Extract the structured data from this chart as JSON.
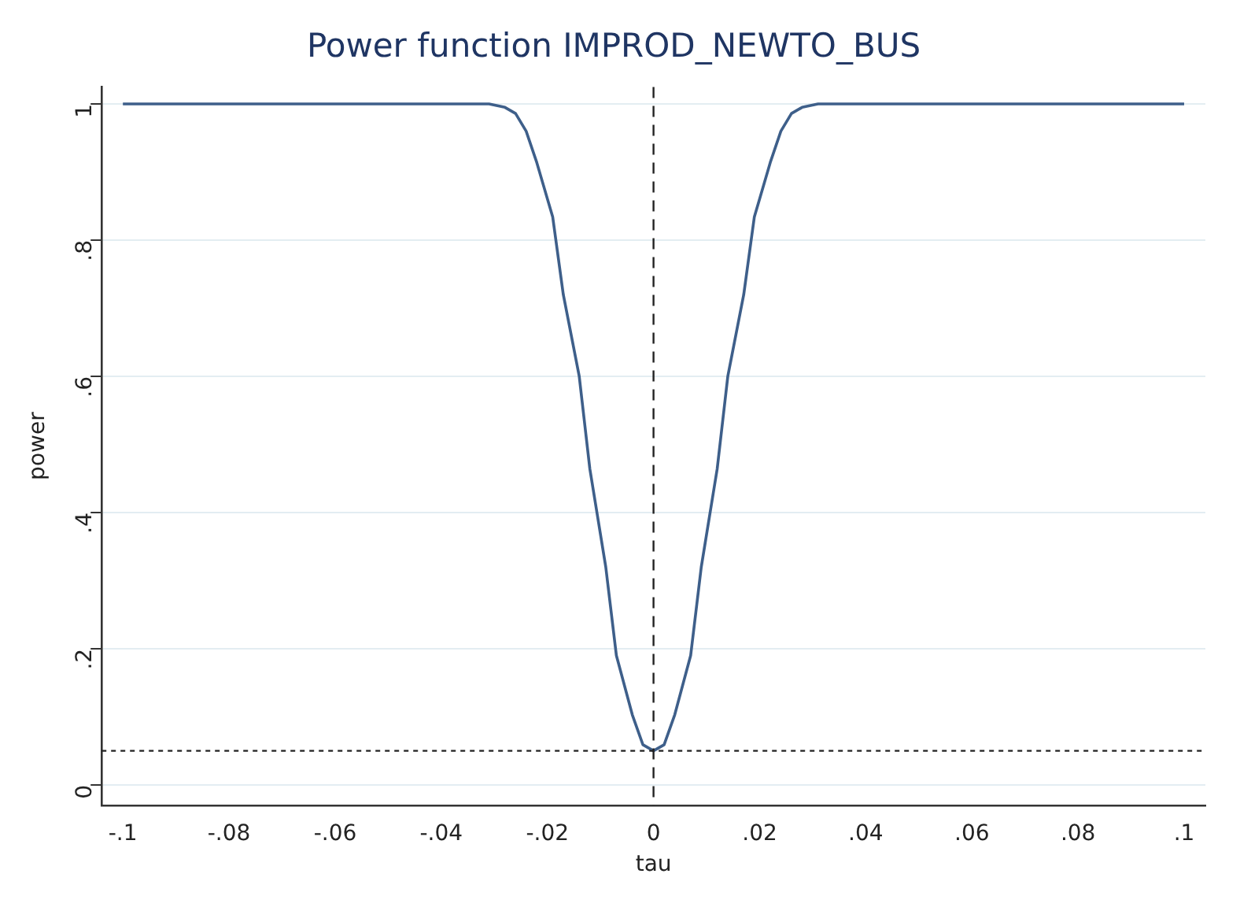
{
  "chart_data": {
    "type": "line",
    "title": "Power function IMPROD_NEWTO_BUS",
    "xlabel": "tau",
    "ylabel": "power",
    "x": [
      -0.1,
      -0.031,
      -0.028,
      -0.026,
      -0.024,
      -0.022,
      -0.019,
      -0.017,
      -0.014,
      -0.012,
      -0.009,
      -0.007,
      -0.004,
      -0.002,
      0,
      0.002,
      0.004,
      0.007,
      0.009,
      0.012,
      0.014,
      0.017,
      0.019,
      0.022,
      0.024,
      0.026,
      0.028,
      0.031,
      0.1
    ],
    "series": [
      {
        "color": "#3e5f8a",
        "values": [
          1,
          1,
          0.995,
          0.986,
          0.96,
          0.914,
          0.834,
          0.72,
          0.6,
          0.464,
          0.32,
          0.19,
          0.103,
          0.059,
          0.05,
          0.059,
          0.103,
          0.19,
          0.32,
          0.464,
          0.6,
          0.72,
          0.834,
          0.914,
          0.96,
          0.986,
          0.995,
          1,
          1
        ]
      }
    ],
    "xlim": [
      -0.104,
      0.104
    ],
    "xticks": [
      {
        "value": -0.1,
        "label": "-.1"
      },
      {
        "value": -0.08,
        "label": "-.08"
      },
      {
        "value": -0.06,
        "label": "-.06"
      },
      {
        "value": -0.04,
        "label": "-.04"
      },
      {
        "value": -0.02,
        "label": "-.02"
      },
      0,
      {
        "value": 0.02,
        "label": ".02"
      },
      {
        "value": 0.04,
        "label": ".04"
      },
      {
        "value": 0.06,
        "label": ".06"
      },
      {
        "value": 0.08,
        "label": ".08"
      },
      {
        "value": 0.1,
        "label": ".1"
      }
    ],
    "ylim": [
      -0.03,
      1.025
    ],
    "yticks": [
      0,
      {
        "value": 0.2,
        "label": ".2"
      },
      {
        "value": 0.4,
        "label": ".4"
      },
      {
        "value": 0.6,
        "label": ".6"
      },
      {
        "value": 0.8,
        "label": ".8"
      },
      1
    ],
    "ref_lines": [
      {
        "axis": "x",
        "value": 0,
        "line_style": "dashed",
        "color": "#222222"
      },
      {
        "axis": "y",
        "value": 0.05,
        "line_style": "dotted",
        "color": "#222222"
      }
    ],
    "grid": "y",
    "legend": false,
    "marker": "none",
    "line_style": "solid"
  }
}
